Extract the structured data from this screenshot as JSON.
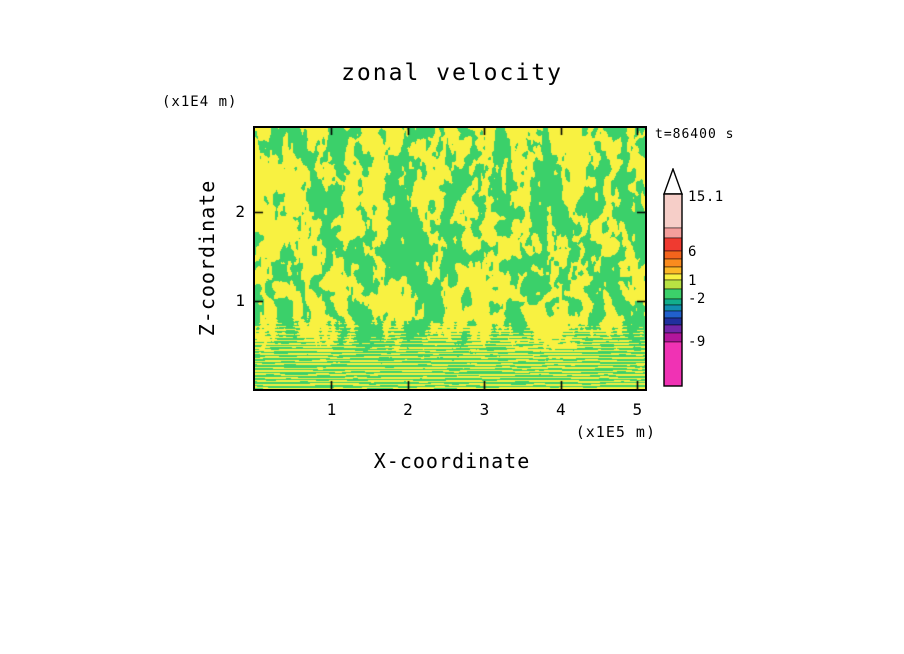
{
  "title": "zonal velocity",
  "annotations": {
    "time": "t=86400 s"
  },
  "axes": {
    "x_label": "X-coordinate",
    "y_label": "Z-coordinate",
    "x_unit": "(x1E5 m)",
    "y_unit": "(x1E4 m)",
    "x_ticks": [
      "1",
      "2",
      "3",
      "4",
      "5"
    ],
    "y_ticks": [
      "1",
      "2"
    ]
  },
  "field": {
    "yellow": "#F8F141",
    "green": "#3BD06A",
    "threshold": 0.5,
    "seed": 1337,
    "xmax": 5.1,
    "zmax": 2.95
  },
  "colorbar": {
    "tip_color": "#FFFFFF",
    "bands": [
      {
        "color": "#F6CEC8",
        "h": 34
      },
      {
        "color": "#F49E9B",
        "h": 10
      },
      {
        "color": "#EF3A30",
        "h": 13
      },
      {
        "color": "#F4641C",
        "h": 8
      },
      {
        "color": "#FA8B1E",
        "h": 8
      },
      {
        "color": "#FCB827",
        "h": 7
      },
      {
        "color": "#F8F141",
        "h": 6
      },
      {
        "color": "#B8E243",
        "h": 9
      },
      {
        "color": "#3BD06A",
        "h": 10
      },
      {
        "color": "#12AE8C",
        "h": 6
      },
      {
        "color": "#128FB0",
        "h": 6
      },
      {
        "color": "#2160CC",
        "h": 7
      },
      {
        "color": "#20309E",
        "h": 7
      },
      {
        "color": "#7226A8",
        "h": 8
      },
      {
        "color": "#B2169B",
        "h": 9
      },
      {
        "color": "#F032B4",
        "h": 44
      }
    ],
    "labels": [
      {
        "text": "15.1",
        "y": 29
      },
      {
        "text": "6",
        "y": 84
      },
      {
        "text": "1",
        "y": 113
      },
      {
        "text": "-2",
        "y": 131
      },
      {
        "text": "-9",
        "y": 174
      }
    ]
  },
  "chart_data": {
    "type": "heatmap",
    "title": "zonal velocity",
    "xlabel": "X-coordinate",
    "ylabel": "Z-coordinate",
    "x_unit_label": "(x1E5 m)",
    "y_unit_label": "(x1E4 m)",
    "time_annotation": "t=86400 s",
    "x_ticks": [
      1,
      2,
      3,
      4,
      5
    ],
    "y_ticks": [
      1,
      2
    ],
    "xlim": [
      0,
      5.1
    ],
    "ylim": [
      0,
      2.95
    ],
    "colorbar_levels": [
      15.1,
      6,
      1,
      -2,
      -9
    ],
    "colorbar_orientation": "vertical-right",
    "grid": false,
    "field_summary": "turbulent two-tone field of interleaved yellow and green filaments (values mostly between -2 and 6) with vertically elongated wisps in the interior and fine horizontal layering near the bottom boundary"
  }
}
